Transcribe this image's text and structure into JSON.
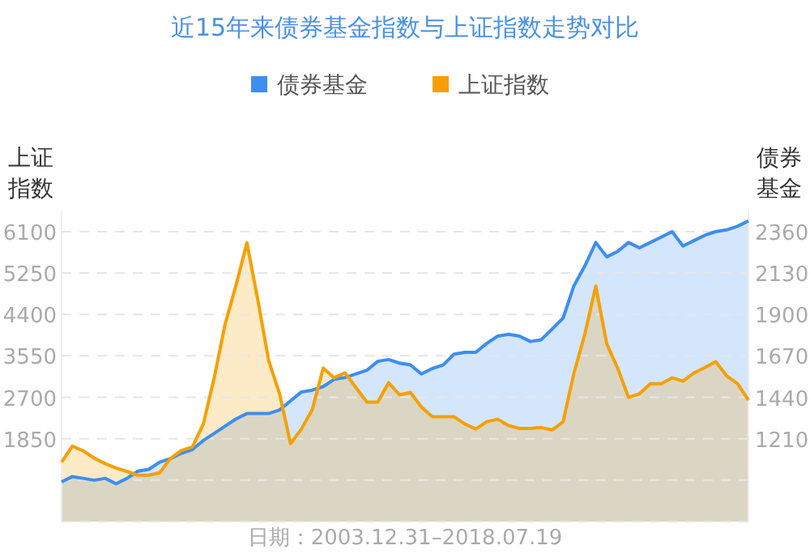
{
  "chart_data": {
    "type": "area",
    "title": "近15年来债券基金指数与上证指数走势对比",
    "ylabel": "上证指数",
    "y2label": "债券基金",
    "annotations": [
      "日期：2003.12.31–2018.07.19"
    ],
    "categories": [
      null,
      null,
      null,
      null,
      null,
      null,
      null,
      null,
      null,
      null,
      null,
      null,
      null,
      null,
      null,
      null,
      null,
      null,
      null,
      null,
      null,
      null,
      null,
      null,
      null,
      null,
      null,
      null,
      null,
      null,
      null,
      null,
      null,
      null,
      null,
      null,
      null,
      null,
      null,
      null,
      null,
      null,
      null,
      null,
      null,
      null,
      null,
      null,
      null,
      null,
      null,
      null,
      null,
      null,
      null,
      null,
      null,
      null,
      null,
      null,
      null,
      null,
      null,
      null
    ],
    "series": [
      {
        "name": "债券基金",
        "color": "#3d8ef0",
        "axis": "y2",
        "values": [
          970,
          1000,
          990,
          980,
          990,
          960,
          990,
          1030,
          1040,
          1080,
          1100,
          1130,
          1150,
          1200,
          1240,
          1280,
          1320,
          1350,
          1350,
          1350,
          1370,
          1420,
          1470,
          1480,
          1500,
          1540,
          1550,
          1570,
          1590,
          1640,
          1650,
          1630,
          1620,
          1570,
          1600,
          1620,
          1680,
          1690,
          1690,
          1740,
          1780,
          1790,
          1780,
          1750,
          1760,
          1820,
          1880,
          2060,
          2170,
          2300,
          2220,
          2250,
          2300,
          2270,
          2300,
          2330,
          2360,
          2280,
          2310,
          2340,
          2360,
          2370,
          2390,
          2420
        ]
      },
      {
        "name": "上证指数",
        "color": "#f5a000",
        "values": [
          1370,
          1700,
          1600,
          1450,
          1340,
          1250,
          1180,
          1100,
          1100,
          1150,
          1450,
          1610,
          1680,
          2150,
          3100,
          4200,
          5000,
          5870,
          4700,
          3450,
          2770,
          1750,
          2050,
          2450,
          3300,
          3100,
          3200,
          2900,
          2600,
          2600,
          3000,
          2750,
          2800,
          2500,
          2300,
          2300,
          2300,
          2150,
          2050,
          2200,
          2250,
          2120,
          2060,
          2060,
          2080,
          2030,
          2200,
          3200,
          4000,
          4980,
          3800,
          3300,
          2700,
          2770,
          2980,
          2980,
          3100,
          3030,
          3200,
          3310,
          3430,
          3140,
          2980,
          2640
        ]
      }
    ],
    "ylim": [
      150,
      6530
    ],
    "yticks": [
      {
        "value": 150,
        "label": null
      },
      {
        "value": 1000,
        "label": null
      },
      1850,
      2700,
      3550,
      4400,
      5250,
      6100
    ],
    "y2lim": [
      750,
      2477
    ],
    "y2ticks": [
      1210,
      1440,
      1670,
      1900,
      2130,
      2360
    ],
    "grid": "y",
    "legend": "top"
  }
}
